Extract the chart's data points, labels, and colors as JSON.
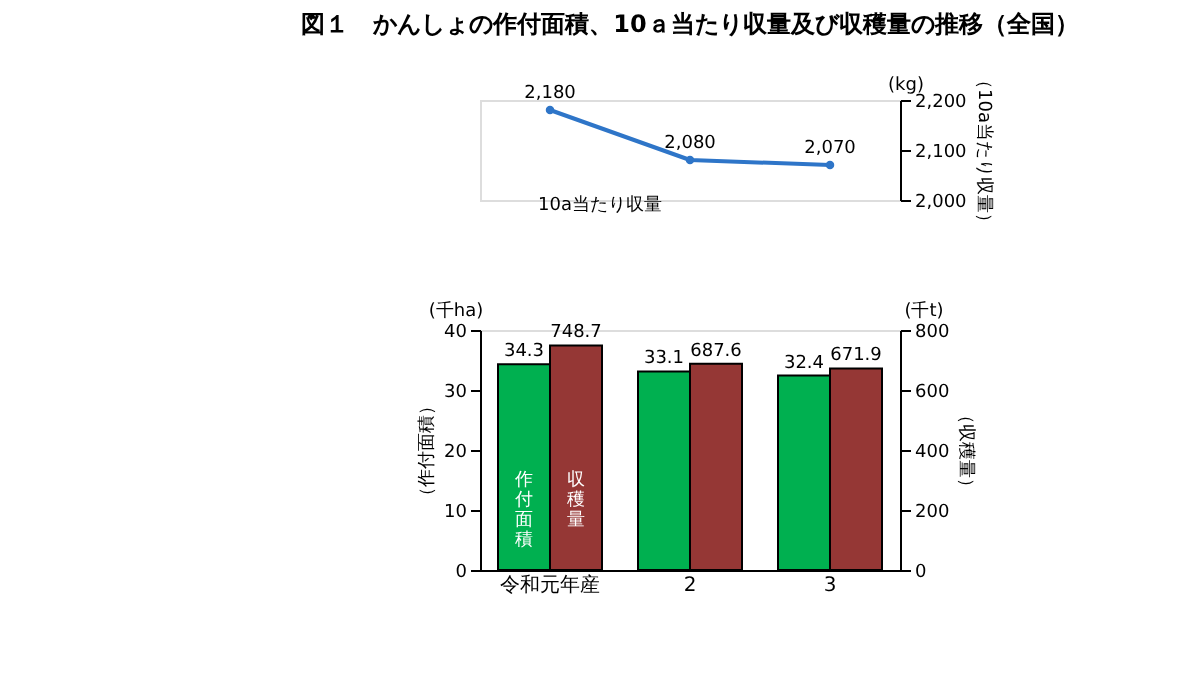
{
  "chart_data": [
    {
      "type": "line",
      "title": "図１　かんしょの作付面積、10ａ当たり収量及び収穫量の推移（全国）",
      "categories": [
        null,
        null,
        null
      ],
      "series": [
        {
          "name": "10a当たり収量",
          "color": "#2e75c8",
          "values": [
            2180,
            2080,
            2070
          ],
          "value_labels": [
            "2,180",
            "2,080",
            "2,070"
          ]
        }
      ],
      "ylim": [
        2000,
        2200
      ],
      "yticks": [
        {
          "value": 2000,
          "label": "2,000"
        },
        {
          "value": 2100,
          "label": "2,100"
        },
        {
          "value": 2200,
          "label": "2,200"
        }
      ],
      "ylabel": "（10a当たり収量）",
      "annotations": [
        "(kg)"
      ],
      "marker": "circle",
      "tick_labels": "y"
    },
    {
      "type": "bar",
      "categories": [
        "令和元年産",
        "2",
        "3"
      ],
      "series": [
        {
          "name": "作付面積",
          "color": "#00b050",
          "values": [
            34.3,
            33.1,
            32.4
          ]
        },
        {
          "name": "収穫量",
          "color": "#953735",
          "values": [
            748.7,
            687.6,
            671.9
          ],
          "axis": "y2"
        }
      ],
      "ylim": [
        0,
        40
      ],
      "yticks": [
        0,
        10,
        20,
        30,
        40
      ],
      "y2lim": [
        0,
        800
      ],
      "y2ticks": [
        0,
        200,
        400,
        600,
        800
      ],
      "ylabel": "（作付面積）",
      "y2label": "（収穫量）",
      "annotations": [
        "(千ha)",
        "(千t)"
      ],
      "data_labels": true
    }
  ]
}
